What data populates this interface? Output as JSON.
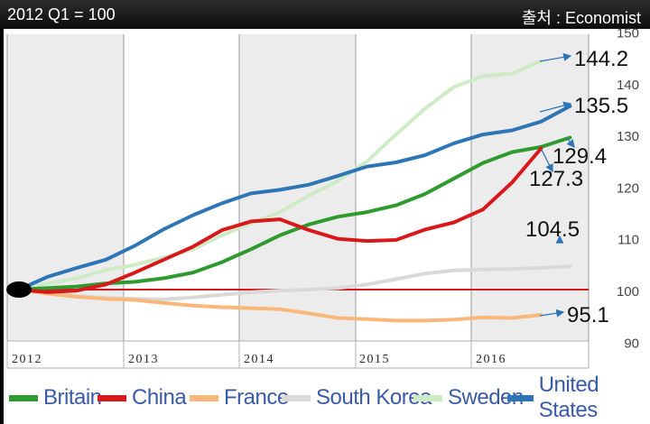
{
  "header": {
    "left_text": "2012 Q1 = 100",
    "right_text": "출처 : Economist"
  },
  "chart_data": {
    "type": "line",
    "x_start": 2012.0,
    "x_tick_labels": [
      "2012",
      "2013",
      "2014",
      "2015",
      "2016"
    ],
    "y_ticks": [
      90,
      100,
      110,
      120,
      130,
      140,
      150
    ],
    "ylim": [
      90,
      150
    ],
    "baseline": 100,
    "series": [
      {
        "name": "Britain",
        "color": "#2f9a2f",
        "points": [
          [
            2012.0,
            100
          ],
          [
            2012.25,
            100.3
          ],
          [
            2012.5,
            100.6
          ],
          [
            2012.75,
            101.2
          ],
          [
            2013.0,
            101.5
          ],
          [
            2013.25,
            102.2
          ],
          [
            2013.5,
            103.3
          ],
          [
            2013.75,
            105.3
          ],
          [
            2014.0,
            107.8
          ],
          [
            2014.25,
            110.5
          ],
          [
            2014.5,
            112.6
          ],
          [
            2014.75,
            114.1
          ],
          [
            2015.0,
            115.0
          ],
          [
            2015.25,
            116.3
          ],
          [
            2015.5,
            118.5
          ],
          [
            2015.75,
            121.5
          ],
          [
            2016.0,
            124.5
          ],
          [
            2016.25,
            126.6
          ],
          [
            2016.5,
            127.6
          ],
          [
            2016.75,
            129.4
          ]
        ]
      },
      {
        "name": "China",
        "color": "#d7191c",
        "points": [
          [
            2012.0,
            100
          ],
          [
            2012.25,
            99.5
          ],
          [
            2012.5,
            99.8
          ],
          [
            2012.75,
            101.0
          ],
          [
            2013.0,
            103.3
          ],
          [
            2013.25,
            105.8
          ],
          [
            2013.5,
            108.3
          ],
          [
            2013.75,
            111.5
          ],
          [
            2014.0,
            113.2
          ],
          [
            2014.25,
            113.6
          ],
          [
            2014.5,
            111.5
          ],
          [
            2014.75,
            109.8
          ],
          [
            2015.0,
            109.4
          ],
          [
            2015.25,
            109.6
          ],
          [
            2015.5,
            111.6
          ],
          [
            2015.75,
            113.0
          ],
          [
            2016.0,
            115.5
          ],
          [
            2016.25,
            120.7
          ],
          [
            2016.5,
            127.3
          ]
        ]
      },
      {
        "name": "France",
        "color": "#f9b87a",
        "points": [
          [
            2012.0,
            100
          ],
          [
            2012.25,
            99.2
          ],
          [
            2012.5,
            98.6
          ],
          [
            2012.75,
            98.2
          ],
          [
            2013.0,
            98.0
          ],
          [
            2013.25,
            97.4
          ],
          [
            2013.5,
            96.9
          ],
          [
            2013.75,
            96.6
          ],
          [
            2014.0,
            96.4
          ],
          [
            2014.25,
            96.2
          ],
          [
            2014.5,
            95.4
          ],
          [
            2014.75,
            94.5
          ],
          [
            2015.0,
            94.3
          ],
          [
            2015.25,
            94.0
          ],
          [
            2015.5,
            94.0
          ],
          [
            2015.75,
            94.2
          ],
          [
            2016.0,
            94.6
          ],
          [
            2016.25,
            94.5
          ],
          [
            2016.5,
            95.1
          ]
        ]
      },
      {
        "name": "South Korea",
        "color": "#d9d9d9",
        "points": [
          [
            2012.0,
            100
          ],
          [
            2012.25,
            99.3
          ],
          [
            2012.5,
            98.8
          ],
          [
            2012.75,
            98.4
          ],
          [
            2013.0,
            98.2
          ],
          [
            2013.25,
            98.1
          ],
          [
            2013.5,
            98.5
          ],
          [
            2013.75,
            99.0
          ],
          [
            2014.0,
            99.5
          ],
          [
            2014.25,
            99.8
          ],
          [
            2014.5,
            100.0
          ],
          [
            2014.75,
            100.3
          ],
          [
            2015.0,
            101.0
          ],
          [
            2015.25,
            102.0
          ],
          [
            2015.5,
            103.1
          ],
          [
            2015.75,
            103.7
          ],
          [
            2016.0,
            103.9
          ],
          [
            2016.25,
            104.0
          ],
          [
            2016.5,
            104.2
          ],
          [
            2016.75,
            104.5
          ]
        ]
      },
      {
        "name": "Sweden",
        "color": "#cdebc4",
        "points": [
          [
            2012.0,
            100
          ],
          [
            2012.25,
            101.2
          ],
          [
            2012.5,
            102.2
          ],
          [
            2012.75,
            103.8
          ],
          [
            2013.0,
            104.8
          ],
          [
            2013.25,
            106.2
          ],
          [
            2013.5,
            107.8
          ],
          [
            2013.75,
            110.5
          ],
          [
            2014.0,
            112.8
          ],
          [
            2014.25,
            115.0
          ],
          [
            2014.5,
            118.2
          ],
          [
            2014.75,
            121.0
          ],
          [
            2015.0,
            124.8
          ],
          [
            2015.25,
            130.0
          ],
          [
            2015.5,
            135.0
          ],
          [
            2015.75,
            139.2
          ],
          [
            2016.0,
            141.3
          ],
          [
            2016.25,
            141.8
          ],
          [
            2016.5,
            144.2
          ]
        ]
      },
      {
        "name": "United States",
        "color": "#2e75b6",
        "points": [
          [
            2012.0,
            100
          ],
          [
            2012.25,
            102.5
          ],
          [
            2012.5,
            104.2
          ],
          [
            2012.75,
            105.8
          ],
          [
            2013.0,
            108.5
          ],
          [
            2013.25,
            111.7
          ],
          [
            2013.5,
            114.4
          ],
          [
            2013.75,
            116.7
          ],
          [
            2014.0,
            118.6
          ],
          [
            2014.25,
            119.3
          ],
          [
            2014.5,
            120.3
          ],
          [
            2014.75,
            122.0
          ],
          [
            2015.0,
            123.8
          ],
          [
            2015.25,
            124.6
          ],
          [
            2015.5,
            126.0
          ],
          [
            2015.75,
            128.3
          ],
          [
            2016.0,
            130.0
          ],
          [
            2016.25,
            130.8
          ],
          [
            2016.5,
            132.5
          ],
          [
            2016.75,
            135.5
          ]
        ]
      }
    ],
    "annotations": [
      {
        "text": "144.2",
        "value": 144.2
      },
      {
        "text": "135.5",
        "value": 135.5
      },
      {
        "text": "129.4",
        "value": 129.4
      },
      {
        "text": "127.3",
        "value": 127.3
      },
      {
        "text": "104.5",
        "value": 104.5
      },
      {
        "text": "95.1",
        "value": 95.1
      }
    ]
  },
  "legend": [
    {
      "label": "Britain",
      "color": "#2f9a2f"
    },
    {
      "label": "China",
      "color": "#d7191c"
    },
    {
      "label": "France",
      "color": "#f9b87a"
    },
    {
      "label": "South Korea",
      "color": "#d9d9d9"
    },
    {
      "label": "Sweden",
      "color": "#cdebc4"
    },
    {
      "label": "United States",
      "color": "#2e75b6"
    }
  ]
}
